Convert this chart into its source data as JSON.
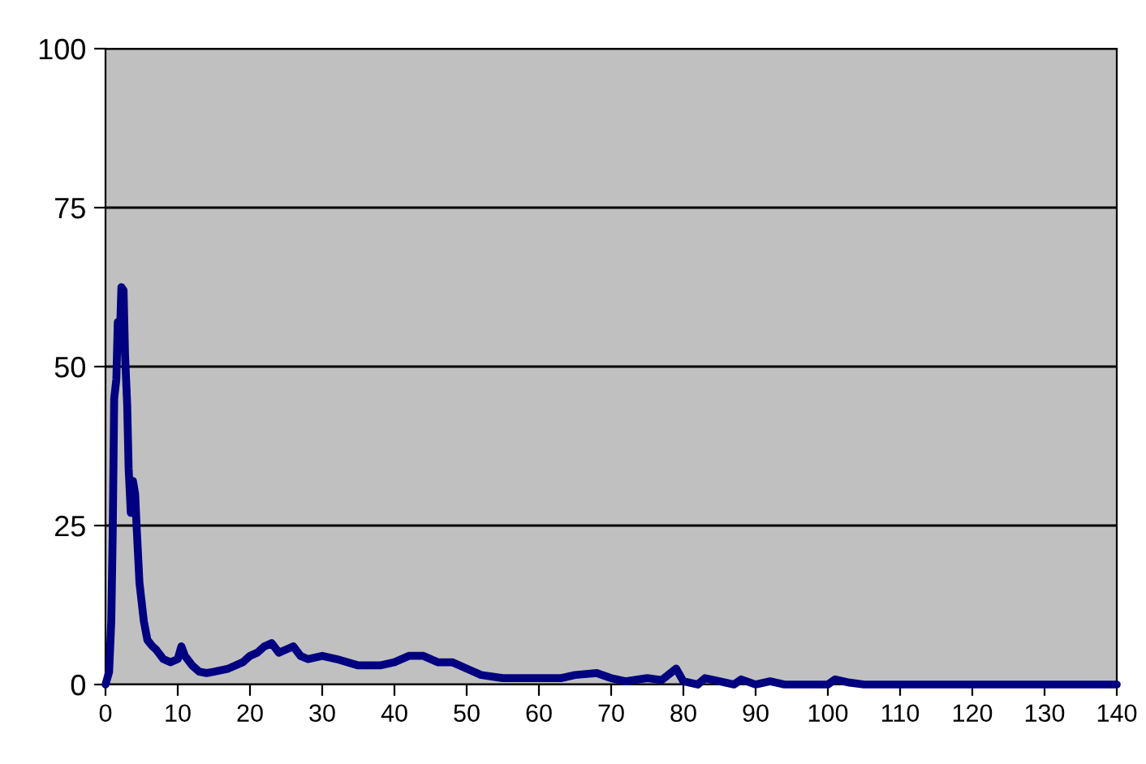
{
  "chart_data": {
    "type": "line",
    "xlim": [
      0,
      140
    ],
    "xticks": [
      0,
      10,
      20,
      30,
      40,
      50,
      60,
      70,
      80,
      90,
      100,
      110,
      120,
      130,
      140
    ],
    "ylim": [
      0,
      100
    ],
    "yticks": [
      0,
      25,
      50,
      75,
      100
    ],
    "grid": "y",
    "marker": "none",
    "line_style": "solid",
    "series": [
      {
        "color": "#000080",
        "x": [
          0,
          0.5,
          0.8,
          1.0,
          1.2,
          1.5,
          1.7,
          2.0,
          2.2,
          2.5,
          2.7,
          3.0,
          3.2,
          3.5,
          3.8,
          4.1,
          4.3,
          4.7,
          5.3,
          5.8,
          6.5,
          7,
          8,
          9,
          10,
          10.5,
          11,
          12,
          13,
          14,
          15,
          17,
          19,
          20,
          21,
          22,
          23,
          24,
          25,
          26,
          27,
          28,
          30,
          32,
          35,
          38,
          40,
          42,
          44,
          46,
          48,
          50,
          52,
          55,
          60,
          63,
          65,
          68,
          70,
          72,
          75,
          77,
          79,
          80,
          82,
          83,
          85,
          87,
          88,
          90,
          92,
          94,
          100,
          101,
          103,
          105,
          140
        ],
        "values": [
          0,
          2,
          10,
          24,
          45,
          48,
          57,
          55,
          62.5,
          62,
          52,
          44,
          34,
          27,
          32,
          30,
          25,
          16,
          10,
          7,
          6,
          5.5,
          4,
          3.5,
          4,
          6,
          4.5,
          3,
          2,
          1.8,
          2,
          2.5,
          3.5,
          4.5,
          5,
          6,
          6.5,
          5,
          5.5,
          6,
          4.5,
          4,
          4.5,
          4,
          3,
          3,
          3.5,
          4.5,
          4.5,
          3.5,
          3.5,
          2.5,
          1.5,
          1,
          1,
          1,
          1.5,
          1.8,
          1,
          0.5,
          1,
          0.7,
          2.5,
          0.5,
          0,
          1,
          0.5,
          0,
          0.8,
          0,
          0.5,
          0,
          0,
          0.8,
          0.3,
          0,
          0
        ]
      }
    ]
  }
}
